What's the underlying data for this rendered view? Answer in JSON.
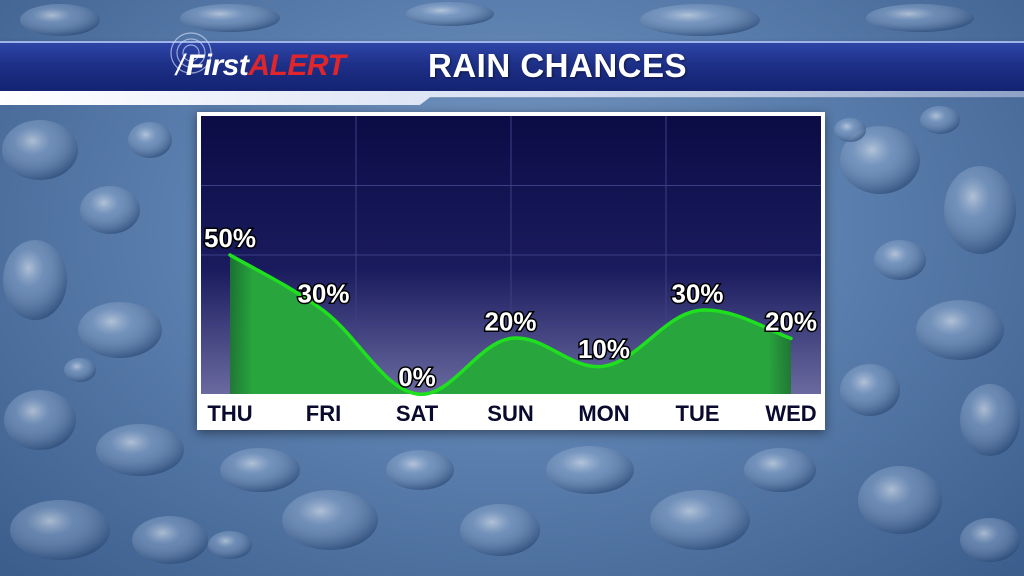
{
  "header": {
    "logo_prefix": "/",
    "logo_first": "First",
    "logo_alert": "ALERT",
    "title": "RAIN CHANCES"
  },
  "colors": {
    "line": "#1fe01f",
    "fill": "#22a338",
    "plot_background": "#0c0d48",
    "logo_alert": "#e0262a"
  },
  "chart_data": {
    "type": "area",
    "title": "RAIN CHANCES",
    "categories": [
      "THU",
      "FRI",
      "SAT",
      "SUN",
      "MON",
      "TUE",
      "WED"
    ],
    "series": [
      {
        "values": [
          50,
          30,
          0,
          20,
          10,
          30,
          20
        ]
      }
    ],
    "data_labels": [
      "50%",
      "30%",
      "0%",
      "20%",
      "10%",
      "30%",
      "20%"
    ],
    "ylim": [
      0,
      100
    ],
    "grid": true,
    "xlabel": "",
    "ylabel": ""
  }
}
